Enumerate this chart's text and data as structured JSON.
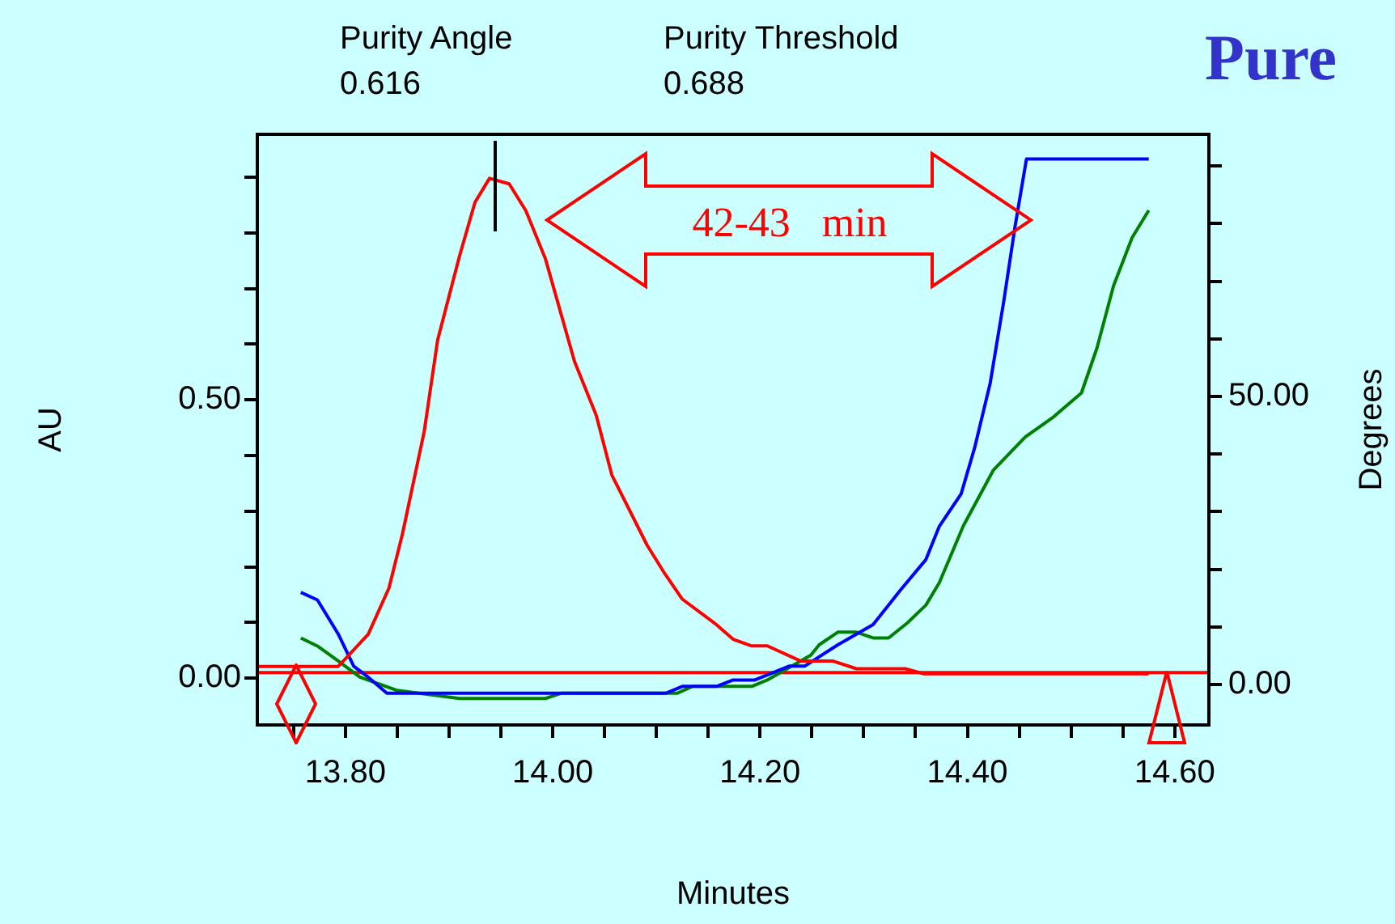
{
  "chart_data": {
    "type": "line",
    "title": "Pure",
    "xlabel": "Minutes",
    "ylabel": "AU",
    "y2label": "Degrees",
    "annotations": [
      "Purity Angle",
      "0.616",
      "Purity Threshold",
      "0.688",
      "42-43   min"
    ],
    "xlim": [
      13.715,
      14.633
    ],
    "xticks": [
      {
        "value": 13.75,
        "label": null
      },
      {
        "value": 13.8,
        "label": "13.80"
      },
      {
        "value": 13.85,
        "label": null
      },
      {
        "value": 13.9,
        "label": null
      },
      {
        "value": 13.95,
        "label": null
      },
      {
        "value": 14.0,
        "label": "14.00"
      },
      {
        "value": 14.05,
        "label": null
      },
      {
        "value": 14.1,
        "label": null
      },
      {
        "value": 14.15,
        "label": null
      },
      {
        "value": 14.2,
        "label": "14.20"
      },
      {
        "value": 14.25,
        "label": null
      },
      {
        "value": 14.3,
        "label": null
      },
      {
        "value": 14.35,
        "label": null
      },
      {
        "value": 14.4,
        "label": "14.40"
      },
      {
        "value": 14.45,
        "label": null
      },
      {
        "value": 14.5,
        "label": null
      },
      {
        "value": 14.55,
        "label": null
      },
      {
        "value": 14.6,
        "label": "14.60"
      }
    ],
    "ylim": [
      -0.084,
      0.977
    ],
    "yticks": [
      {
        "value": 0,
        "label": "0.00"
      },
      {
        "value": 0.1,
        "label": null
      },
      {
        "value": 0.2,
        "label": null
      },
      {
        "value": 0.3,
        "label": null
      },
      {
        "value": 0.4,
        "label": null
      },
      {
        "value": 0.5,
        "label": "0.50"
      },
      {
        "value": 0.6,
        "label": null
      },
      {
        "value": 0.7,
        "label": null
      },
      {
        "value": 0.8,
        "label": null
      },
      {
        "value": 0.9,
        "label": null
      }
    ],
    "y2lim": [
      -7,
      95.5
    ],
    "y2ticks": [
      {
        "value": 0,
        "label": "0.00"
      },
      {
        "value": 10,
        "label": null
      },
      {
        "value": 20,
        "label": null
      },
      {
        "value": 30,
        "label": null
      },
      {
        "value": 40,
        "label": null
      },
      {
        "value": 50,
        "label": "50.00"
      },
      {
        "value": 60,
        "label": null
      },
      {
        "value": 70,
        "label": null
      },
      {
        "value": 80,
        "label": null
      },
      {
        "value": 90,
        "label": null
      }
    ],
    "grid": false,
    "legend": false,
    "marker": "none",
    "line_style": "solid",
    "ref_lines": [
      {
        "axis": "y",
        "value": 0.01,
        "color": "#ff0000"
      }
    ],
    "series": [
      {
        "color": "#ff0000",
        "x": [
          13.716,
          13.793,
          13.822,
          13.842,
          13.855,
          13.876,
          13.889,
          13.91,
          13.925,
          13.939,
          13.958,
          13.974,
          13.993,
          14.021,
          14.042,
          14.057,
          14.091,
          14.107,
          14.125,
          14.156,
          14.174,
          14.192,
          14.207,
          14.239,
          14.27,
          14.293,
          14.34,
          14.358,
          14.575
        ],
        "values": [
          0.021,
          0.021,
          0.079,
          0.162,
          0.259,
          0.443,
          0.608,
          0.758,
          0.855,
          0.898,
          0.888,
          0.84,
          0.753,
          0.569,
          0.472,
          0.365,
          0.239,
          0.191,
          0.142,
          0.099,
          0.07,
          0.058,
          0.058,
          0.031,
          0.031,
          0.017,
          0.017,
          0.008,
          0.008
        ]
      },
      {
        "color": "#0000ff",
        "axis": "y2",
        "x": [
          13.757,
          13.773,
          13.793,
          13.808,
          13.822,
          13.84,
          14.109,
          14.125,
          14.158,
          14.174,
          14.195,
          14.228,
          14.243,
          14.275,
          14.309,
          14.335,
          14.36,
          14.373,
          14.394,
          14.407,
          14.422,
          14.435,
          14.446,
          14.457,
          14.575
        ],
        "values": [
          16.0,
          14.7,
          8.8,
          3.2,
          1.3,
          -1.5,
          -1.5,
          -0.3,
          -0.3,
          0.8,
          0.8,
          3.2,
          3.2,
          6.9,
          10.4,
          16.3,
          21.7,
          27.5,
          33.1,
          41.1,
          52.3,
          66.4,
          79.5,
          91.2,
          91.2
        ]
      },
      {
        "color": "#008000",
        "axis": "y2",
        "x": [
          13.757,
          13.773,
          13.793,
          13.814,
          13.85,
          13.91,
          13.993,
          14.008,
          14.12,
          14.135,
          14.192,
          14.207,
          14.249,
          14.257,
          14.275,
          14.293,
          14.309,
          14.324,
          14.342,
          14.36,
          14.373,
          14.396,
          14.425,
          14.456,
          14.482,
          14.51,
          14.525,
          14.541,
          14.559,
          14.575
        ],
        "values": [
          8.1,
          6.7,
          4.1,
          1.3,
          -1.0,
          -2.4,
          -2.4,
          -1.5,
          -1.5,
          -0.3,
          -0.3,
          0.8,
          5.1,
          6.9,
          9.1,
          9.1,
          8.1,
          8.1,
          10.7,
          13.8,
          17.7,
          27.5,
          37.2,
          43.0,
          46.3,
          50.6,
          58.4,
          69.2,
          77.6,
          82.3
        ]
      }
    ]
  }
}
